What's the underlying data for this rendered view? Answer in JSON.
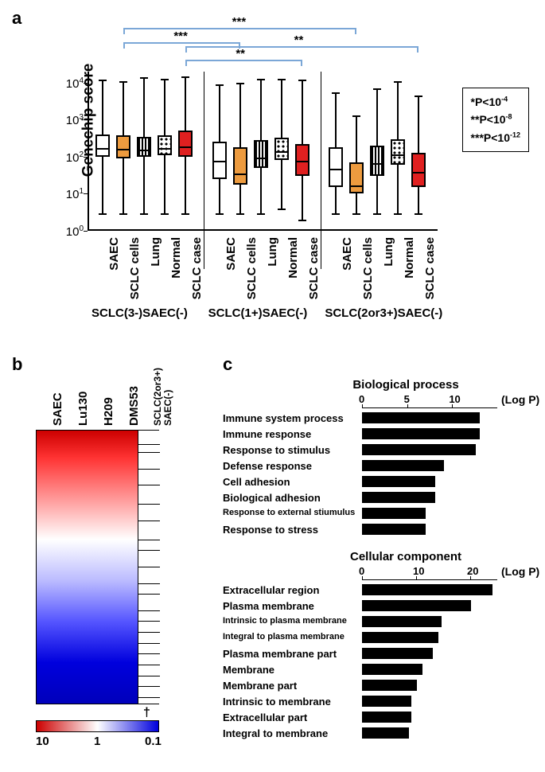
{
  "panel_a": {
    "label": "a",
    "y_axis_label": "Genechip score",
    "y_ticks": [
      "10⁰",
      "10¹",
      "10²",
      "10³",
      "10⁴"
    ],
    "pvalue_legend": [
      "*P<10⁻⁴",
      "**P<10⁻⁸",
      "***P<10⁻¹²"
    ],
    "x_categories": [
      "SAEC",
      "SCLC cells",
      "Lung",
      "Normal",
      "SCLC case"
    ],
    "groups": [
      "SCLC(3-)SAEC(-)",
      "SCLC(1+)SAEC(-)",
      "SCLC(2or3+)SAEC(-)"
    ],
    "colors": {
      "saec": "#ffffff",
      "sclc_cells": "#ed9b3f",
      "lung": "stripes",
      "normal": "dots",
      "sclc_case": "#e02020"
    },
    "significance": [
      {
        "label": "***",
        "from": 1,
        "to": 6
      },
      {
        "label": "***",
        "from": 1,
        "to": 11
      },
      {
        "label": "**",
        "from": 4,
        "to": 9
      },
      {
        "label": "**",
        "from": 4,
        "to": 14
      }
    ],
    "boxes": [
      {
        "q1": 100,
        "q3": 400,
        "median": 180,
        "wl": 3,
        "wh": 12000,
        "fill": "#ffffff"
      },
      {
        "q1": 90,
        "q3": 380,
        "median": 170,
        "wl": 3,
        "wh": 11000,
        "fill": "#ed9b3f"
      },
      {
        "q1": 100,
        "q3": 350,
        "median": 160,
        "wl": 3,
        "wh": 14000,
        "fill": "stripes"
      },
      {
        "q1": 110,
        "q3": 380,
        "median": 180,
        "wl": 3,
        "wh": 13000,
        "fill": "dots"
      },
      {
        "q1": 100,
        "q3": 500,
        "median": 200,
        "wl": 3,
        "wh": 15000,
        "fill": "#e02020"
      },
      {
        "q1": 25,
        "q3": 250,
        "median": 80,
        "wl": 3,
        "wh": 9000,
        "fill": "#ffffff"
      },
      {
        "q1": 18,
        "q3": 180,
        "median": 38,
        "wl": 3,
        "wh": 10000,
        "fill": "#ed9b3f"
      },
      {
        "q1": 50,
        "q3": 280,
        "median": 100,
        "wl": 3,
        "wh": 13000,
        "fill": "stripes"
      },
      {
        "q1": 80,
        "q3": 330,
        "median": 150,
        "wl": 4,
        "wh": 13000,
        "fill": "dots"
      },
      {
        "q1": 30,
        "q3": 220,
        "median": 80,
        "wl": 2,
        "wh": 12000,
        "fill": "#e02020"
      },
      {
        "q1": 15,
        "q3": 180,
        "median": 50,
        "wl": 3,
        "wh": 5500,
        "fill": "#ffffff"
      },
      {
        "q1": 10,
        "q3": 70,
        "median": 18,
        "wl": 3,
        "wh": 1300,
        "fill": "#ed9b3f"
      },
      {
        "q1": 30,
        "q3": 200,
        "median": 70,
        "wl": 3,
        "wh": 7000,
        "fill": "stripes"
      },
      {
        "q1": 60,
        "q3": 300,
        "median": 120,
        "wl": 3,
        "wh": 11000,
        "fill": "dots"
      },
      {
        "q1": 15,
        "q3": 130,
        "median": 40,
        "wl": 3,
        "wh": 4500,
        "fill": "#e02020"
      }
    ]
  },
  "panel_b": {
    "label": "b",
    "columns": [
      "SAEC",
      "Lu130",
      "H209",
      "DMS53"
    ],
    "side_label_top": "SCLC(2or3+)",
    "side_label_bottom": "SAEC(-)",
    "scale_labels": [
      "10",
      "1",
      "0.1"
    ],
    "dagger": "†"
  },
  "panel_c": {
    "label": "c",
    "sections": [
      {
        "title": "Biological process",
        "axis_max": 15,
        "axis_ticks": [
          0,
          5,
          10
        ],
        "axis_label": "(Log P)",
        "bars": [
          {
            "label": "Immune system process",
            "value": 13,
            "small": false
          },
          {
            "label": "Immune response",
            "value": 13,
            "small": false
          },
          {
            "label": "Response to stimulus",
            "value": 12.5,
            "small": false
          },
          {
            "label": "Defense response",
            "value": 9,
            "small": false
          },
          {
            "label": "Cell adhesion",
            "value": 8,
            "small": false
          },
          {
            "label": "Biological adhesion",
            "value": 8,
            "small": false
          },
          {
            "label": "Response to external stiumulus",
            "value": 7,
            "small": true
          },
          {
            "label": "Response to stress",
            "value": 7,
            "small": false
          }
        ]
      },
      {
        "title": "Cellular component",
        "axis_max": 25,
        "axis_ticks": [
          0,
          10,
          20
        ],
        "axis_label": "(Log P)",
        "bars": [
          {
            "label": "Extracellular region",
            "value": 24,
            "small": false
          },
          {
            "label": "Plasma membrane",
            "value": 20,
            "small": false
          },
          {
            "label": "Intrinsic to plasma membrane",
            "value": 14.5,
            "small": true
          },
          {
            "label": "Integral to plasma membrane",
            "value": 14,
            "small": true
          },
          {
            "label": "Plasma membrane part",
            "value": 13,
            "small": false
          },
          {
            "label": "Membrane",
            "value": 11,
            "small": false
          },
          {
            "label": "Membrane part",
            "value": 10,
            "small": false
          },
          {
            "label": "Intrinsic to membrane",
            "value": 9,
            "small": false
          },
          {
            "label": "Extracellular part",
            "value": 9,
            "small": false
          },
          {
            "label": "Integral to membrane",
            "value": 8.5,
            "small": false
          }
        ]
      }
    ]
  }
}
